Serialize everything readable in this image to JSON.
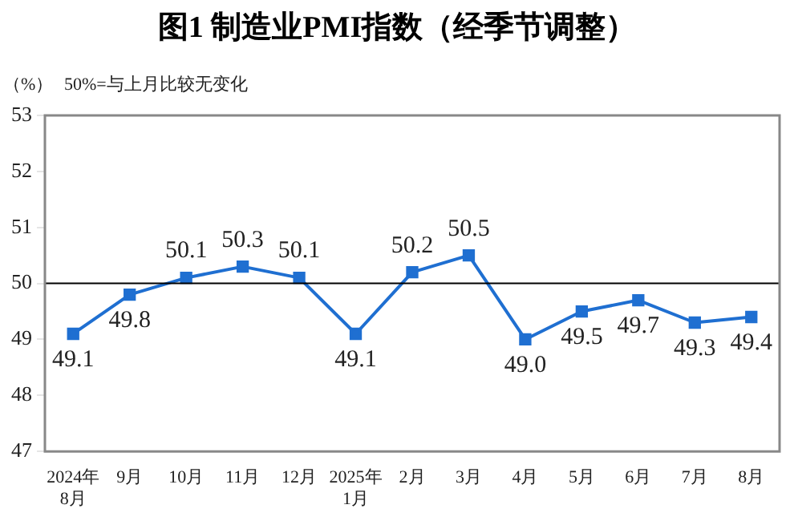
{
  "chart_data": {
    "type": "line",
    "title": "图1  制造业PMI指数（经季节调整）",
    "ylabel": "（%）",
    "annotations": [
      "50%=与上月比较无变化"
    ],
    "categories": [
      "2024年\n8月",
      "9月",
      "10月",
      "11月",
      "12月",
      "2025年\n1月",
      "2月",
      "3月",
      "4月",
      "5月",
      "6月",
      "7月",
      "8月"
    ],
    "series": [
      {
        "color": "#1f6fd1",
        "values": [
          49.1,
          49.8,
          50.1,
          50.3,
          50.1,
          49.1,
          50.2,
          50.5,
          49.0,
          49.5,
          49.7,
          49.3,
          49.4
        ]
      }
    ],
    "value_labels": [
      "49.1",
      "49.8",
      "50.1",
      "50.3",
      "50.1",
      "49.1",
      "50.2",
      "50.5",
      "49.0",
      "49.5",
      "49.7",
      "49.3",
      "49.4"
    ],
    "ylim": [
      47,
      53
    ],
    "yticks": [
      47,
      48,
      49,
      50,
      51,
      52,
      53
    ],
    "ref_lines": [
      {
        "axis": "y",
        "value": 50,
        "color": "#000000"
      }
    ],
    "marker": "square",
    "line_style": "solid",
    "grid": false,
    "legend": false
  }
}
